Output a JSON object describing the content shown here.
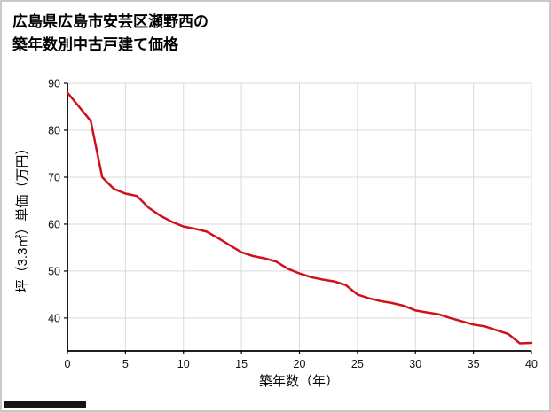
{
  "title": {
    "line1": "広島県広島市安芸区瀬野西の",
    "line2": "築年数別中古戸建て価格"
  },
  "chart_data": {
    "type": "line",
    "title": "広島県広島市安芸区瀬野西の築年数別中古戸建て価格",
    "xlabel": "築年数（年）",
    "ylabel": "坪（3.3㎡）単価（万円）",
    "x": [
      0,
      1,
      2,
      3,
      4,
      5,
      6,
      7,
      8,
      9,
      10,
      11,
      12,
      13,
      14,
      15,
      16,
      17,
      18,
      19,
      20,
      21,
      22,
      23,
      24,
      25,
      26,
      27,
      28,
      29,
      30,
      31,
      32,
      33,
      34,
      35,
      36,
      37,
      38,
      39,
      40
    ],
    "values": [
      88,
      85,
      82,
      70,
      67.5,
      66.5,
      66,
      63.5,
      61.8,
      60.5,
      59.5,
      59,
      58.4,
      57,
      55.5,
      54,
      53.2,
      52.7,
      52,
      50.5,
      49.5,
      48.7,
      48.2,
      47.8,
      47,
      45,
      44.2,
      43.6,
      43.2,
      42.6,
      41.6,
      41.2,
      40.8,
      40,
      39.3,
      38.6,
      38.2,
      37.4,
      36.6,
      34.6,
      34.7
    ],
    "x_ticks": [
      0,
      5,
      10,
      15,
      20,
      25,
      30,
      35,
      40
    ],
    "y_ticks": [
      40,
      50,
      60,
      70,
      80,
      90
    ],
    "xlim": [
      0,
      40
    ],
    "ylim": [
      33,
      90
    ],
    "line_color": "#d0111b",
    "grid": true,
    "grid_color": "#dadada",
    "axis_color": "#000000",
    "legend_position": "none"
  }
}
